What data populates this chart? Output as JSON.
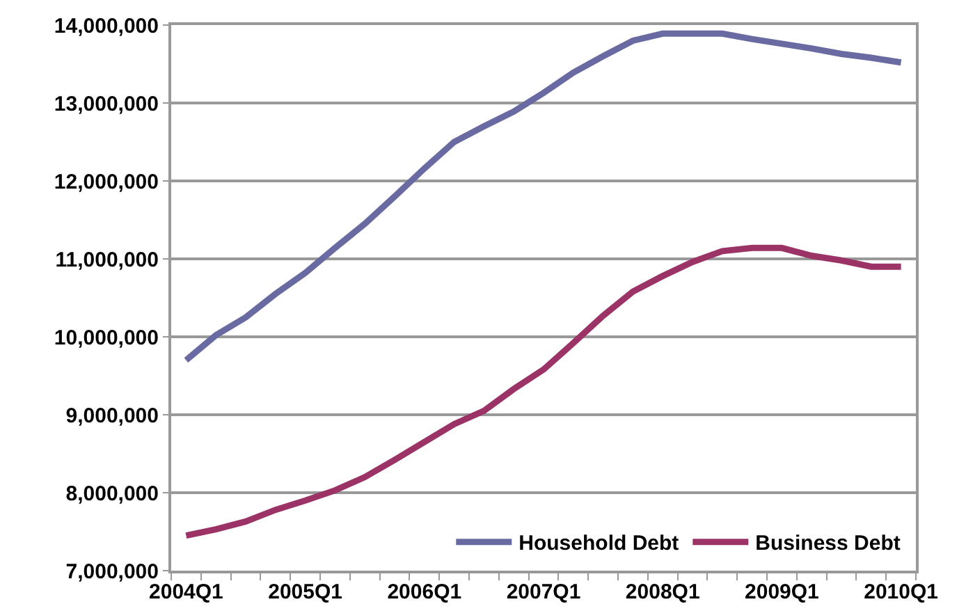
{
  "chart_data": {
    "type": "line",
    "categories": [
      "2004Q1",
      null,
      null,
      null,
      "2005Q1",
      null,
      null,
      null,
      "2006Q1",
      null,
      null,
      null,
      "2007Q1",
      null,
      null,
      null,
      "2008Q1",
      null,
      null,
      null,
      "2009Q1",
      null,
      null,
      null,
      "2010Q1"
    ],
    "series": [
      {
        "name": "Household Debt",
        "color": "#6a6aa2",
        "values": [
          9700000,
          10020000,
          10250000,
          10550000,
          10820000,
          11140000,
          11450000,
          11800000,
          12160000,
          12500000,
          12700000,
          12890000,
          13130000,
          13390000,
          13600000,
          13800000,
          13890000,
          13890000,
          13890000,
          13820000,
          13760000,
          13700000,
          13630000,
          13580000,
          13520000
        ]
      },
      {
        "name": "Business Debt",
        "color": "#9b3366",
        "values": [
          7450000,
          7530000,
          7630000,
          7780000,
          7900000,
          8030000,
          8200000,
          8420000,
          8650000,
          8880000,
          9050000,
          9330000,
          9580000,
          9920000,
          10270000,
          10580000,
          10780000,
          10960000,
          11100000,
          11140000,
          11140000,
          11040000,
          10980000,
          10900000,
          10900000
        ]
      }
    ],
    "ylim": [
      7000000,
      14000000
    ],
    "yticks": [
      {
        "value": 7000000,
        "label": "7,000,000"
      },
      {
        "value": 8000000,
        "label": "8,000,000"
      },
      {
        "value": 9000000,
        "label": "9,000,000"
      },
      {
        "value": 10000000,
        "label": "10,000,000"
      },
      {
        "value": 11000000,
        "label": "11,000,000"
      },
      {
        "value": 12000000,
        "label": "12,000,000"
      },
      {
        "value": 13000000,
        "label": "13,000,000"
      },
      {
        "value": 14000000,
        "label": "14,000,000"
      }
    ],
    "grid": "y",
    "legend": "bottom right",
    "marker": "none",
    "line_style": "solid"
  }
}
